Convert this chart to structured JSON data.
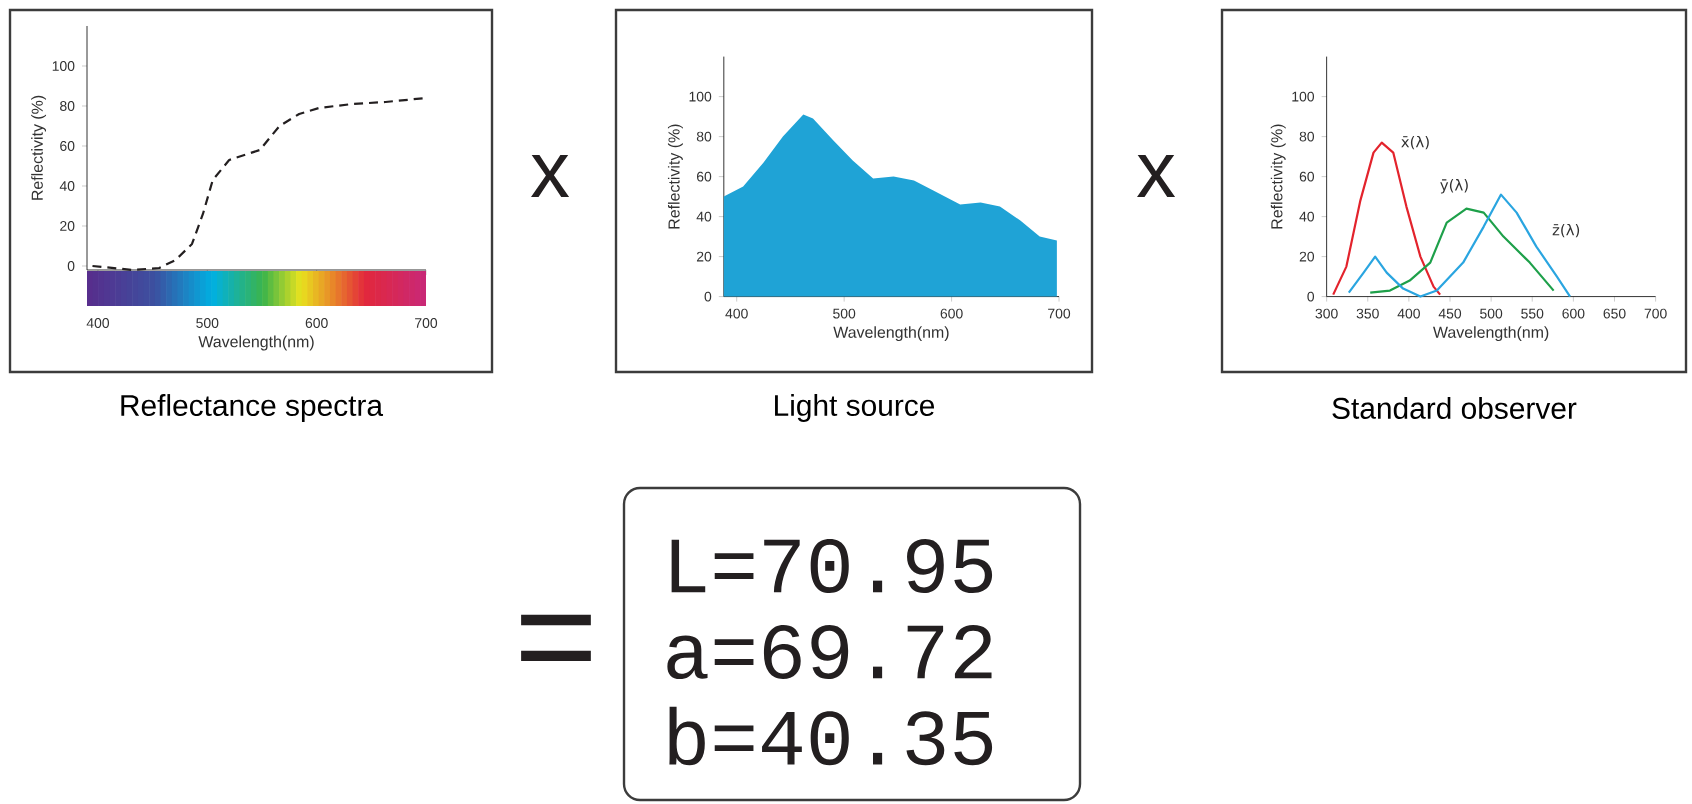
{
  "chart_data": [
    {
      "type": "line",
      "title": "Reflectance spectra",
      "xlabel": "Wavelength(nm)",
      "ylabel": "Reflectivity (%)",
      "xlim": [
        390,
        700
      ],
      "ylim": [
        -2,
        120
      ],
      "xticks": [
        400,
        500,
        600,
        700
      ],
      "yticks": [
        0,
        20,
        40,
        60,
        80,
        100
      ],
      "line_style": "dashed",
      "marker": "none",
      "series": [
        {
          "color": "#231f20",
          "x": [
            395,
            432,
            456,
            471,
            486,
            496,
            505,
            520,
            548,
            566,
            584,
            602,
            633,
            663,
            700
          ],
          "values": [
            0,
            -2,
            -1,
            3,
            11,
            26,
            43,
            53,
            58,
            70,
            76,
            79,
            81,
            82,
            84
          ]
        }
      ]
    },
    {
      "type": "area",
      "title": "Light source",
      "xlabel": "Wavelength(nm)",
      "ylabel": "Reflectivity (%)",
      "xlim": [
        388,
        700
      ],
      "ylim": [
        0,
        120
      ],
      "xticks": [
        400,
        500,
        600,
        700
      ],
      "yticks": [
        0,
        20,
        40,
        60,
        80,
        100
      ],
      "series": [
        {
          "color": "#1fa3d6",
          "x": [
            388,
            406,
            425,
            443,
            462,
            471,
            490,
            508,
            527,
            546,
            565,
            583,
            608,
            627,
            645,
            664,
            682,
            698
          ],
          "values": [
            50,
            55,
            67,
            80,
            91,
            89,
            78,
            68,
            59,
            60,
            58,
            53,
            46,
            47,
            45,
            38,
            30,
            28
          ]
        }
      ]
    },
    {
      "type": "line",
      "title": "Standard observer",
      "xlabel": "Wavelength(nm)",
      "ylabel": "Reflectivity (%)",
      "xlim": [
        300,
        700
      ],
      "ylim": [
        0,
        120
      ],
      "xticks": [
        300,
        350,
        400,
        450,
        500,
        550,
        600,
        650,
        700
      ],
      "yticks": [
        0,
        20,
        40,
        60,
        80,
        100
      ],
      "line_style": "solid",
      "marker": "none",
      "series": [
        {
          "name": "x̄(λ)",
          "color": "#e3232c",
          "x": [
            308,
            324,
            341,
            357,
            367,
            381,
            397,
            414,
            430,
            438
          ],
          "values": [
            1,
            15,
            48,
            72,
            77,
            72,
            45,
            20,
            5,
            1
          ]
        },
        {
          "name": "ȳ(λ)",
          "color": "#1ea04a",
          "x": [
            353,
            377,
            401,
            426,
            446,
            470,
            491,
            515,
            547,
            576
          ],
          "values": [
            2,
            3,
            8,
            17,
            37,
            44,
            42,
            30,
            17,
            3
          ]
        },
        {
          "name": "z̄(λ)",
          "color": "#2aa5e0",
          "x": [
            327,
            345,
            359,
            373,
            393,
            414,
            434,
            466,
            491,
            512,
            531,
            555,
            580,
            596
          ],
          "values": [
            2,
            12,
            20,
            12,
            4,
            0,
            3,
            17,
            35,
            51,
            42,
            25,
            10,
            0
          ]
        }
      ]
    },
    {
      "type": "other",
      "annotations": [
        "x",
        "x",
        "=",
        "L=70.95",
        "a=69.72",
        "b=40.35"
      ]
    }
  ]
}
